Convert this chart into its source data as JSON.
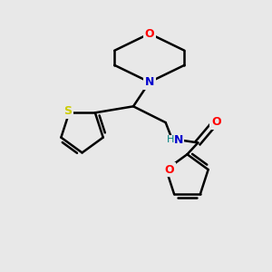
{
  "bg_color": "#e8e8e8",
  "bond_color": "#000000",
  "N_color": "#0000cd",
  "O_color": "#ff0000",
  "S_color": "#cccc00",
  "NH_color": "#008080",
  "line_width": 1.8,
  "figsize": [
    3.0,
    3.0
  ],
  "dpi": 100,
  "xlim": [
    0,
    10
  ],
  "ylim": [
    0,
    10
  ]
}
